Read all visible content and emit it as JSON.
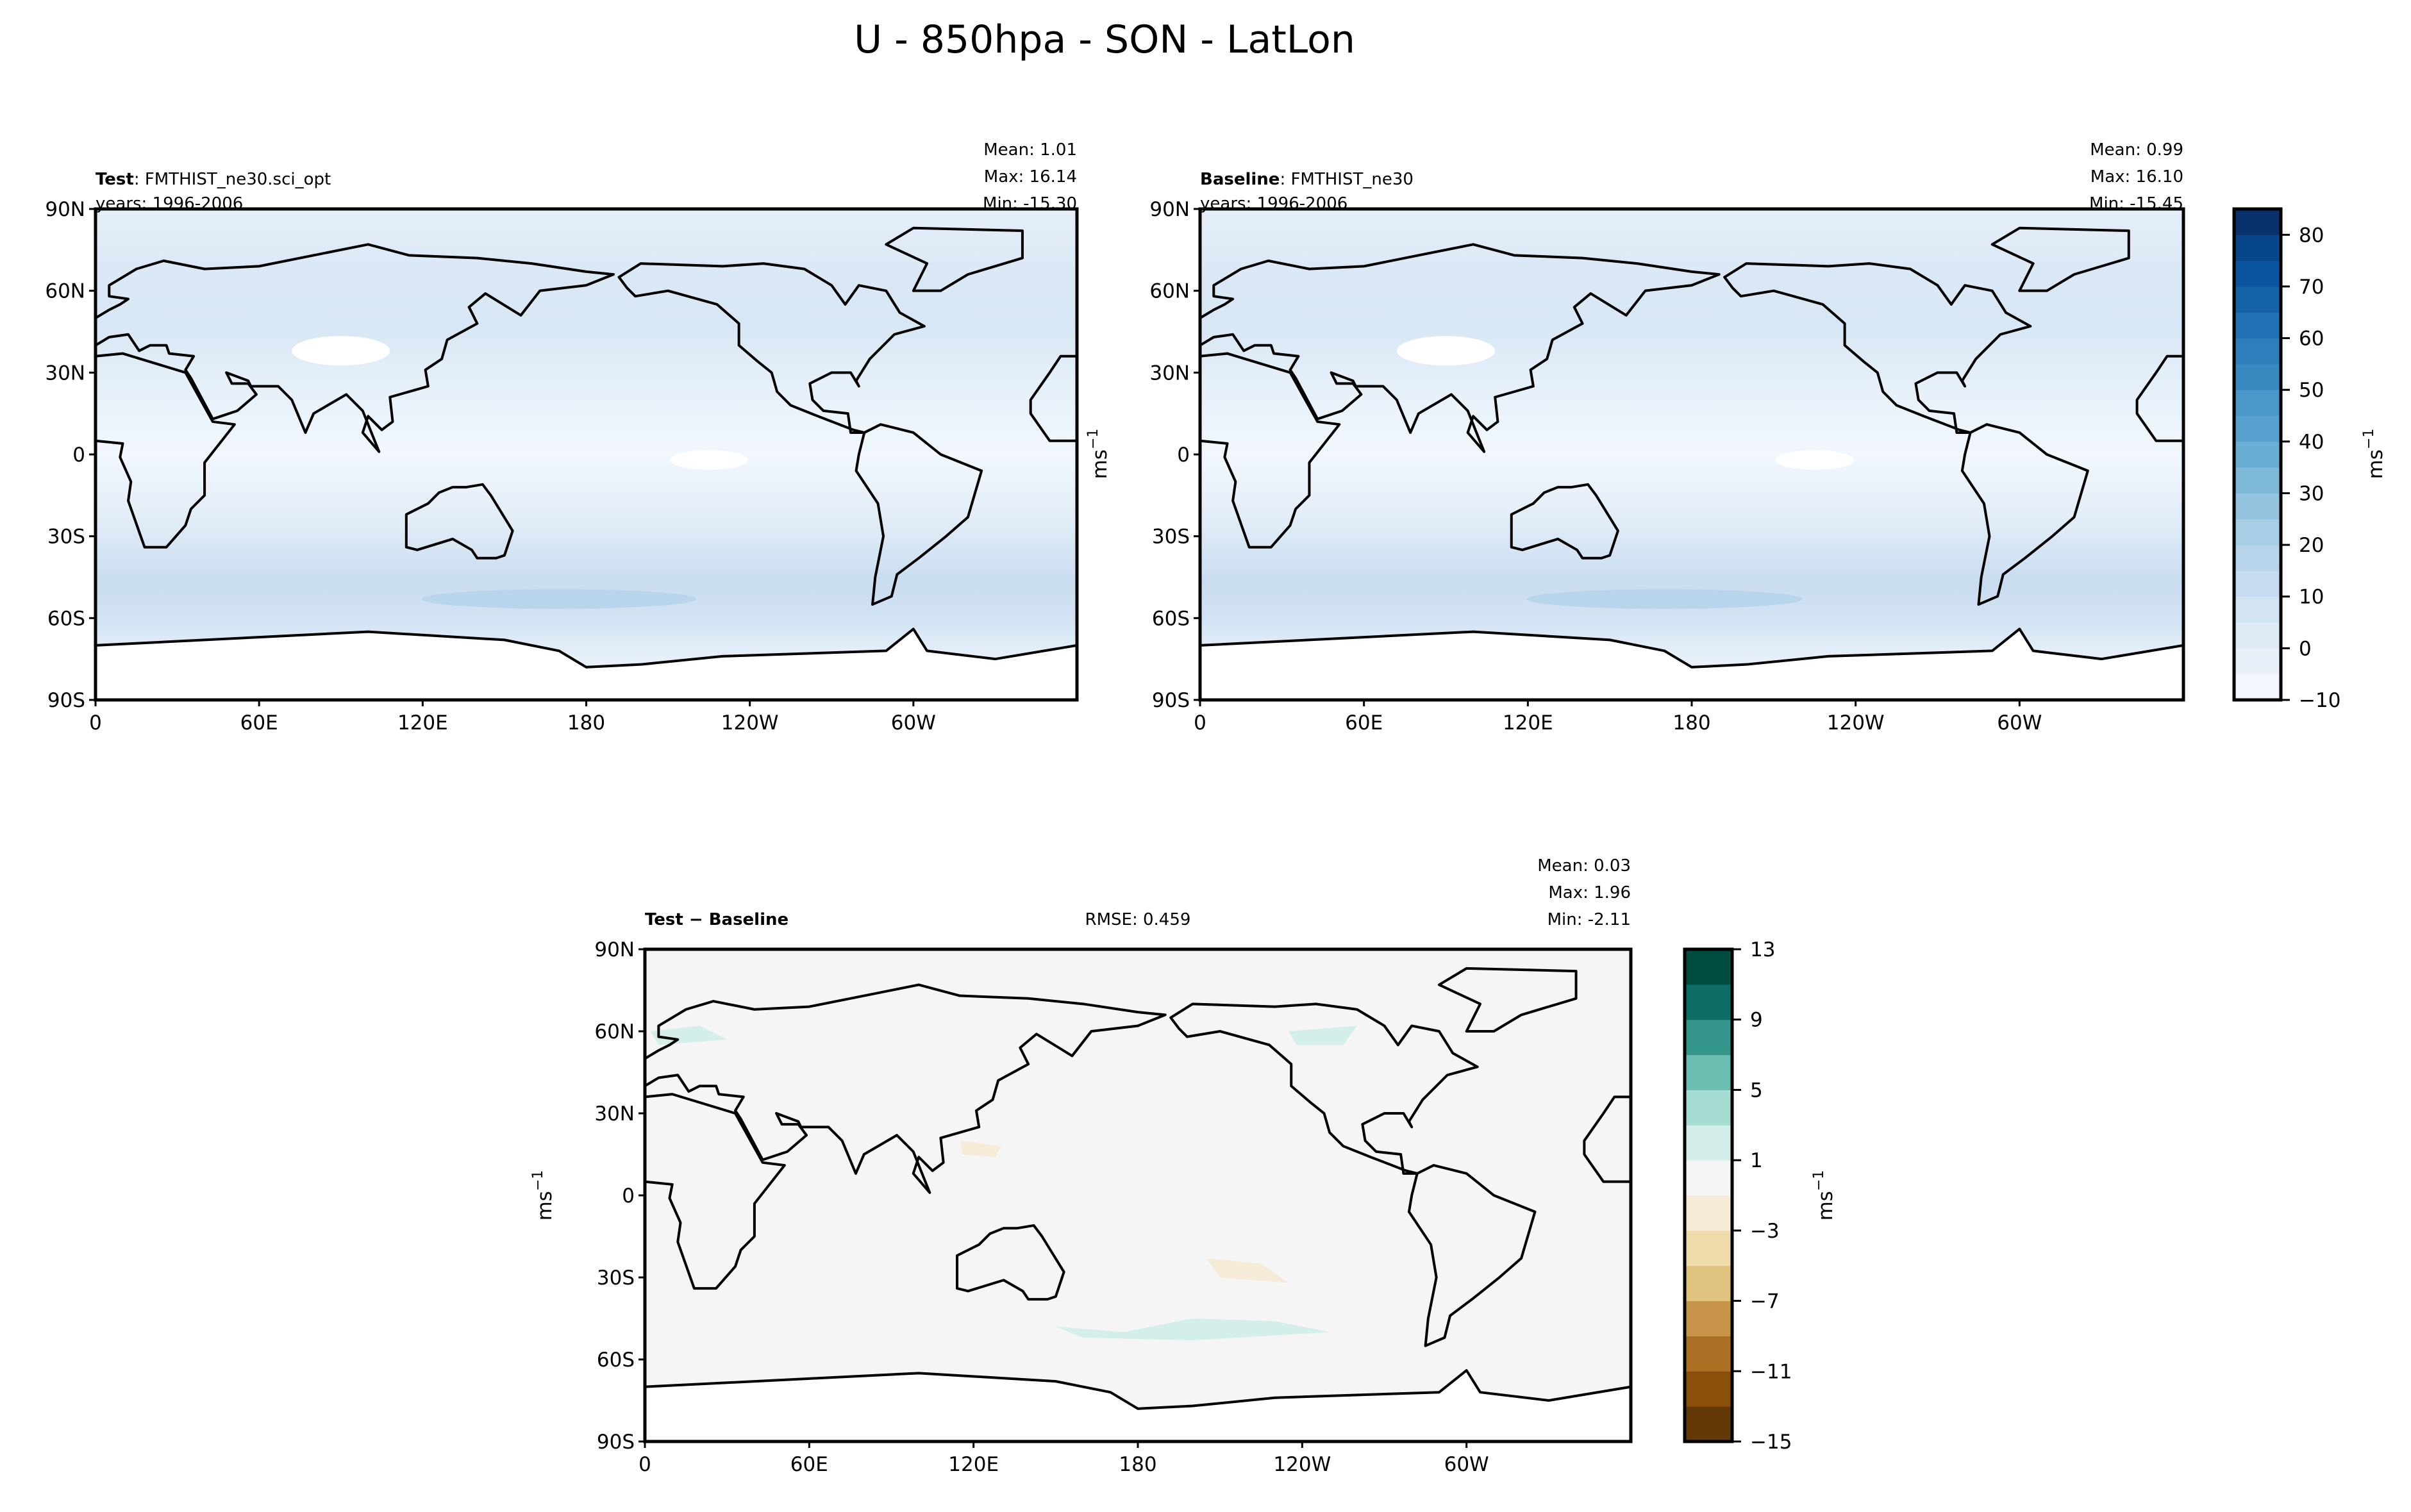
{
  "chart_data": {
    "type": "heatmap",
    "title": "U - 850hpa - SON - LatLon",
    "x_ticks": [
      {
        "lon": 0,
        "label": "0"
      },
      {
        "lon": 60,
        "label": "60E"
      },
      {
        "lon": 120,
        "label": "120E"
      },
      {
        "lon": 180,
        "label": "180"
      },
      {
        "lon": 240,
        "label": "120W"
      },
      {
        "lon": 300,
        "label": "60W"
      }
    ],
    "y_ticks": [
      {
        "lat": 90,
        "label": "90N"
      },
      {
        "lat": 60,
        "label": "60N"
      },
      {
        "lat": 30,
        "label": "30N"
      },
      {
        "lat": 0,
        "label": "0"
      },
      {
        "lat": -30,
        "label": "30S"
      },
      {
        "lat": -60,
        "label": "60S"
      },
      {
        "lat": -90,
        "label": "90S"
      }
    ],
    "xlim": [
      0,
      360
    ],
    "ylim": [
      -90,
      90
    ],
    "units": "ms",
    "units_exp": "−1",
    "panels": [
      {
        "name": "test",
        "label_bold": "Test",
        "label_rest": ": FMTHIST_ne30.sci_opt",
        "years": "years: 1996-2006",
        "mean": "Mean:  1.01",
        "max": "Max: 16.14",
        "min": "Min: -15.30"
      },
      {
        "name": "baseline",
        "label_bold": "Baseline",
        "label_rest": ": FMTHIST_ne30",
        "years": "years: 1996-2006",
        "mean": "Mean:  0.99",
        "max": "Max: 16.10",
        "min": "Min: -15.45"
      },
      {
        "name": "difference",
        "label_bold": "Test − Baseline",
        "label_rest": "",
        "rmse": "RMSE: 0.459",
        "mean": "Mean:  0.03",
        "max": "Max:  1.96",
        "min": "Min: -2.11"
      }
    ],
    "colorbar_main": {
      "range": [
        -10,
        85
      ],
      "step": 5,
      "ticks": [
        {
          "v": -10,
          "label": "−10"
        },
        {
          "v": 0,
          "label": "0"
        },
        {
          "v": 10,
          "label": "10"
        },
        {
          "v": 20,
          "label": "20"
        },
        {
          "v": 30,
          "label": "30"
        },
        {
          "v": 40,
          "label": "40"
        },
        {
          "v": 50,
          "label": "50"
        },
        {
          "v": 60,
          "label": "60"
        },
        {
          "v": 70,
          "label": "70"
        },
        {
          "v": 80,
          "label": "80"
        }
      ],
      "colors": [
        "#f1f7fd",
        "#e8f1fa",
        "#deebf7",
        "#d3e4f3",
        "#c6dbef",
        "#b7d4ea",
        "#a6cee4",
        "#94c4df",
        "#7fb9da",
        "#6aaed6",
        "#58a1cf",
        "#4a98c9",
        "#3a89c1",
        "#2e7ebc",
        "#2070b4",
        "#1562a9",
        "#0a549e",
        "#08468b",
        "#08306b"
      ]
    },
    "colorbar_diff": {
      "range": [
        -15,
        13
      ],
      "step": 2,
      "ticks": [
        {
          "v": -15,
          "label": "−15"
        },
        {
          "v": -11,
          "label": "−11"
        },
        {
          "v": -7,
          "label": "−7"
        },
        {
          "v": -3,
          "label": "−3"
        },
        {
          "v": 1,
          "label": "1"
        },
        {
          "v": 5,
          "label": "5"
        },
        {
          "v": 9,
          "label": "9"
        },
        {
          "v": 13,
          "label": "13"
        }
      ],
      "colors": [
        "#643908",
        "#8a4f0a",
        "#ad7126",
        "#c8944a",
        "#dfc27d",
        "#efdcaa",
        "#f5ebd6",
        "#f4f5f4",
        "#d4eeea",
        "#a6ddd3",
        "#6cbdb1",
        "#35968c",
        "#0b6d63",
        "#014c40"
      ]
    }
  }
}
